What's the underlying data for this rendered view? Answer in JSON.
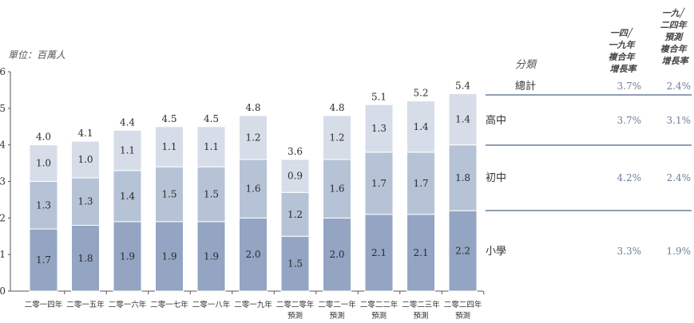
{
  "unit_label": "單位：百萬人",
  "chart_data": {
    "type": "bar",
    "stacked": true,
    "categories": [
      "二零一四年",
      "二零一五年",
      "二零一六年",
      "二零一七年",
      "二零一八年",
      "二零一九年",
      "二零二零年",
      "二零二一年",
      "二零二二年",
      "二零二三年",
      "二零二四年"
    ],
    "category_notes": [
      "",
      "",
      "",
      "",
      "",
      "",
      "預測",
      "預測",
      "預測",
      "預測",
      "預測"
    ],
    "series": [
      {
        "name": "小學",
        "color": "#93a5c2",
        "values": [
          1.7,
          1.8,
          1.9,
          1.9,
          1.9,
          2.0,
          1.5,
          2.0,
          2.1,
          2.1,
          2.2
        ]
      },
      {
        "name": "初中",
        "color": "#b6c3d6",
        "values": [
          1.3,
          1.3,
          1.4,
          1.5,
          1.5,
          1.6,
          1.2,
          1.6,
          1.7,
          1.7,
          1.8
        ]
      },
      {
        "name": "高中",
        "color": "#d6dde8",
        "values": [
          1.0,
          1.0,
          1.1,
          1.1,
          1.1,
          1.2,
          0.9,
          1.2,
          1.3,
          1.4,
          1.4
        ]
      }
    ],
    "totals": [
      4.0,
      4.1,
      4.4,
      4.5,
      4.5,
      4.8,
      3.6,
      4.8,
      5.1,
      5.2,
      5.4
    ],
    "ylim": [
      0,
      6
    ],
    "yticks": [
      0,
      1,
      2,
      3,
      4,
      5,
      6
    ],
    "grid": false
  },
  "cagr_table": {
    "category_header": "分類",
    "col1_header": [
      "一四╱",
      "一九年",
      "複合年",
      "增長率"
    ],
    "col2_header": [
      "一九╱",
      "二四年",
      "預測",
      "複合年",
      "增長率"
    ],
    "total": {
      "label": "總計",
      "c1": "3.7%",
      "c2": "2.4%"
    },
    "rows": [
      {
        "label": "高中",
        "c1": "3.7%",
        "c2": "3.1%"
      },
      {
        "label": "初中",
        "c1": "4.2%",
        "c2": "2.4%"
      },
      {
        "label": "小學",
        "c1": "3.3%",
        "c2": "1.9%"
      }
    ]
  }
}
